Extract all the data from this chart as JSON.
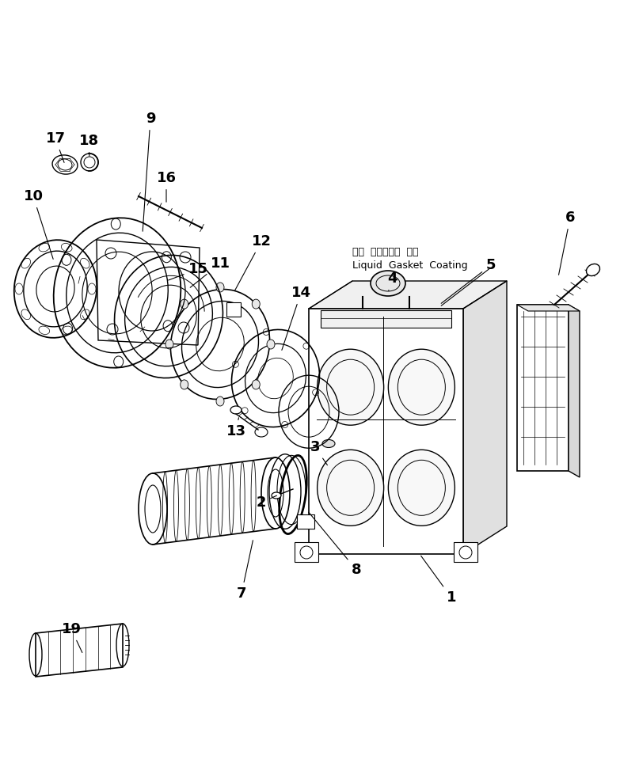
{
  "background_color": "#ffffff",
  "line_color": "#000000",
  "fig_width": 7.83,
  "fig_height": 9.59,
  "dpi": 100,
  "annotation_japanese": "液状  ガスケット  塗布",
  "annotation_english": "Liquid  Gasket  Coating"
}
